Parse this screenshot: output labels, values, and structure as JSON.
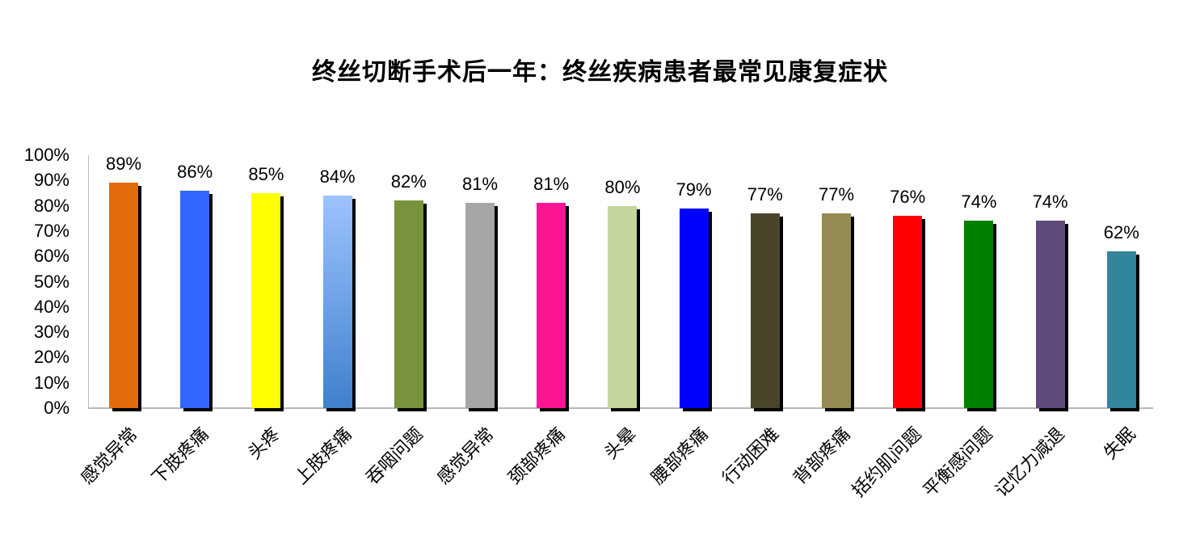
{
  "chart_data": {
    "type": "bar",
    "title": "终丝切断手术后一年：终丝疾病患者最常见康复症状",
    "xlabel": "",
    "ylabel": "",
    "ylim": [
      0,
      100
    ],
    "y_ticks": [
      "0%",
      "10%",
      "20%",
      "30%",
      "40%",
      "50%",
      "60%",
      "70%",
      "80%",
      "90%",
      "100%"
    ],
    "grid": false,
    "legend": null,
    "categories": [
      "感觉异常",
      "下肢疼痛",
      "头疼",
      "上肢疼痛",
      "吞咽问题",
      "感觉异常",
      "颈部疼痛",
      "头晕",
      "腰部疼痛",
      "行动困难",
      "背部疼痛",
      "括约肌问题",
      "平衡感问题",
      "记忆力减退",
      "失眠"
    ],
    "values": [
      89,
      86,
      85,
      84,
      82,
      81,
      81,
      80,
      79,
      77,
      77,
      76,
      74,
      74,
      62
    ],
    "value_labels": [
      "89%",
      "86%",
      "85%",
      "84%",
      "82%",
      "81%",
      "81%",
      "80%",
      "79%",
      "77%",
      "77%",
      "76%",
      "74%",
      "74%",
      "62%"
    ],
    "colors": [
      "#E36C0A",
      "#3366FF",
      "#FFFF00",
      "#8DB4F0",
      "#77933C",
      "#A6A6A6",
      "#FF1493",
      "#C3D69B",
      "#0000FF",
      "#4A452A",
      "#948A54",
      "#FF0000",
      "#008000",
      "#604A7B",
      "#31859C"
    ]
  }
}
